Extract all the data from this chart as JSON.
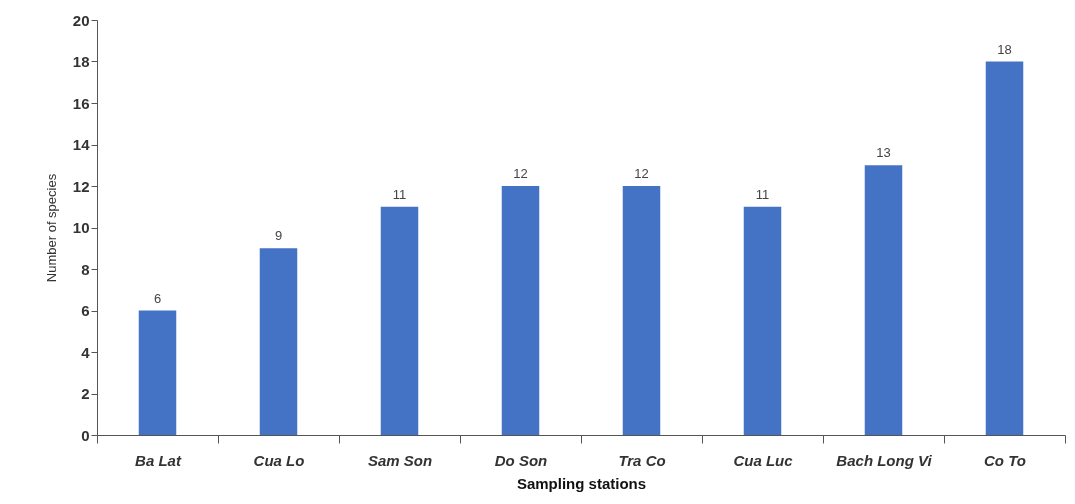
{
  "chart_data": {
    "type": "bar",
    "xlabel": "Sampling stations",
    "ylabel": "Number of species",
    "categories": [
      "Ba Lat",
      "Cua Lo",
      "Sam Son",
      "Do Son",
      "Tra Co",
      "Cua Luc",
      "Bach Long Vi",
      "Co To"
    ],
    "values": [
      6,
      9,
      11,
      12,
      12,
      11,
      13,
      18
    ],
    "color": "#4472c4",
    "ylim": [
      0,
      20
    ],
    "yticks": [
      0,
      2,
      4,
      6,
      8,
      10,
      12,
      14,
      16,
      18,
      20
    ],
    "grid": false,
    "data_labels": true
  }
}
